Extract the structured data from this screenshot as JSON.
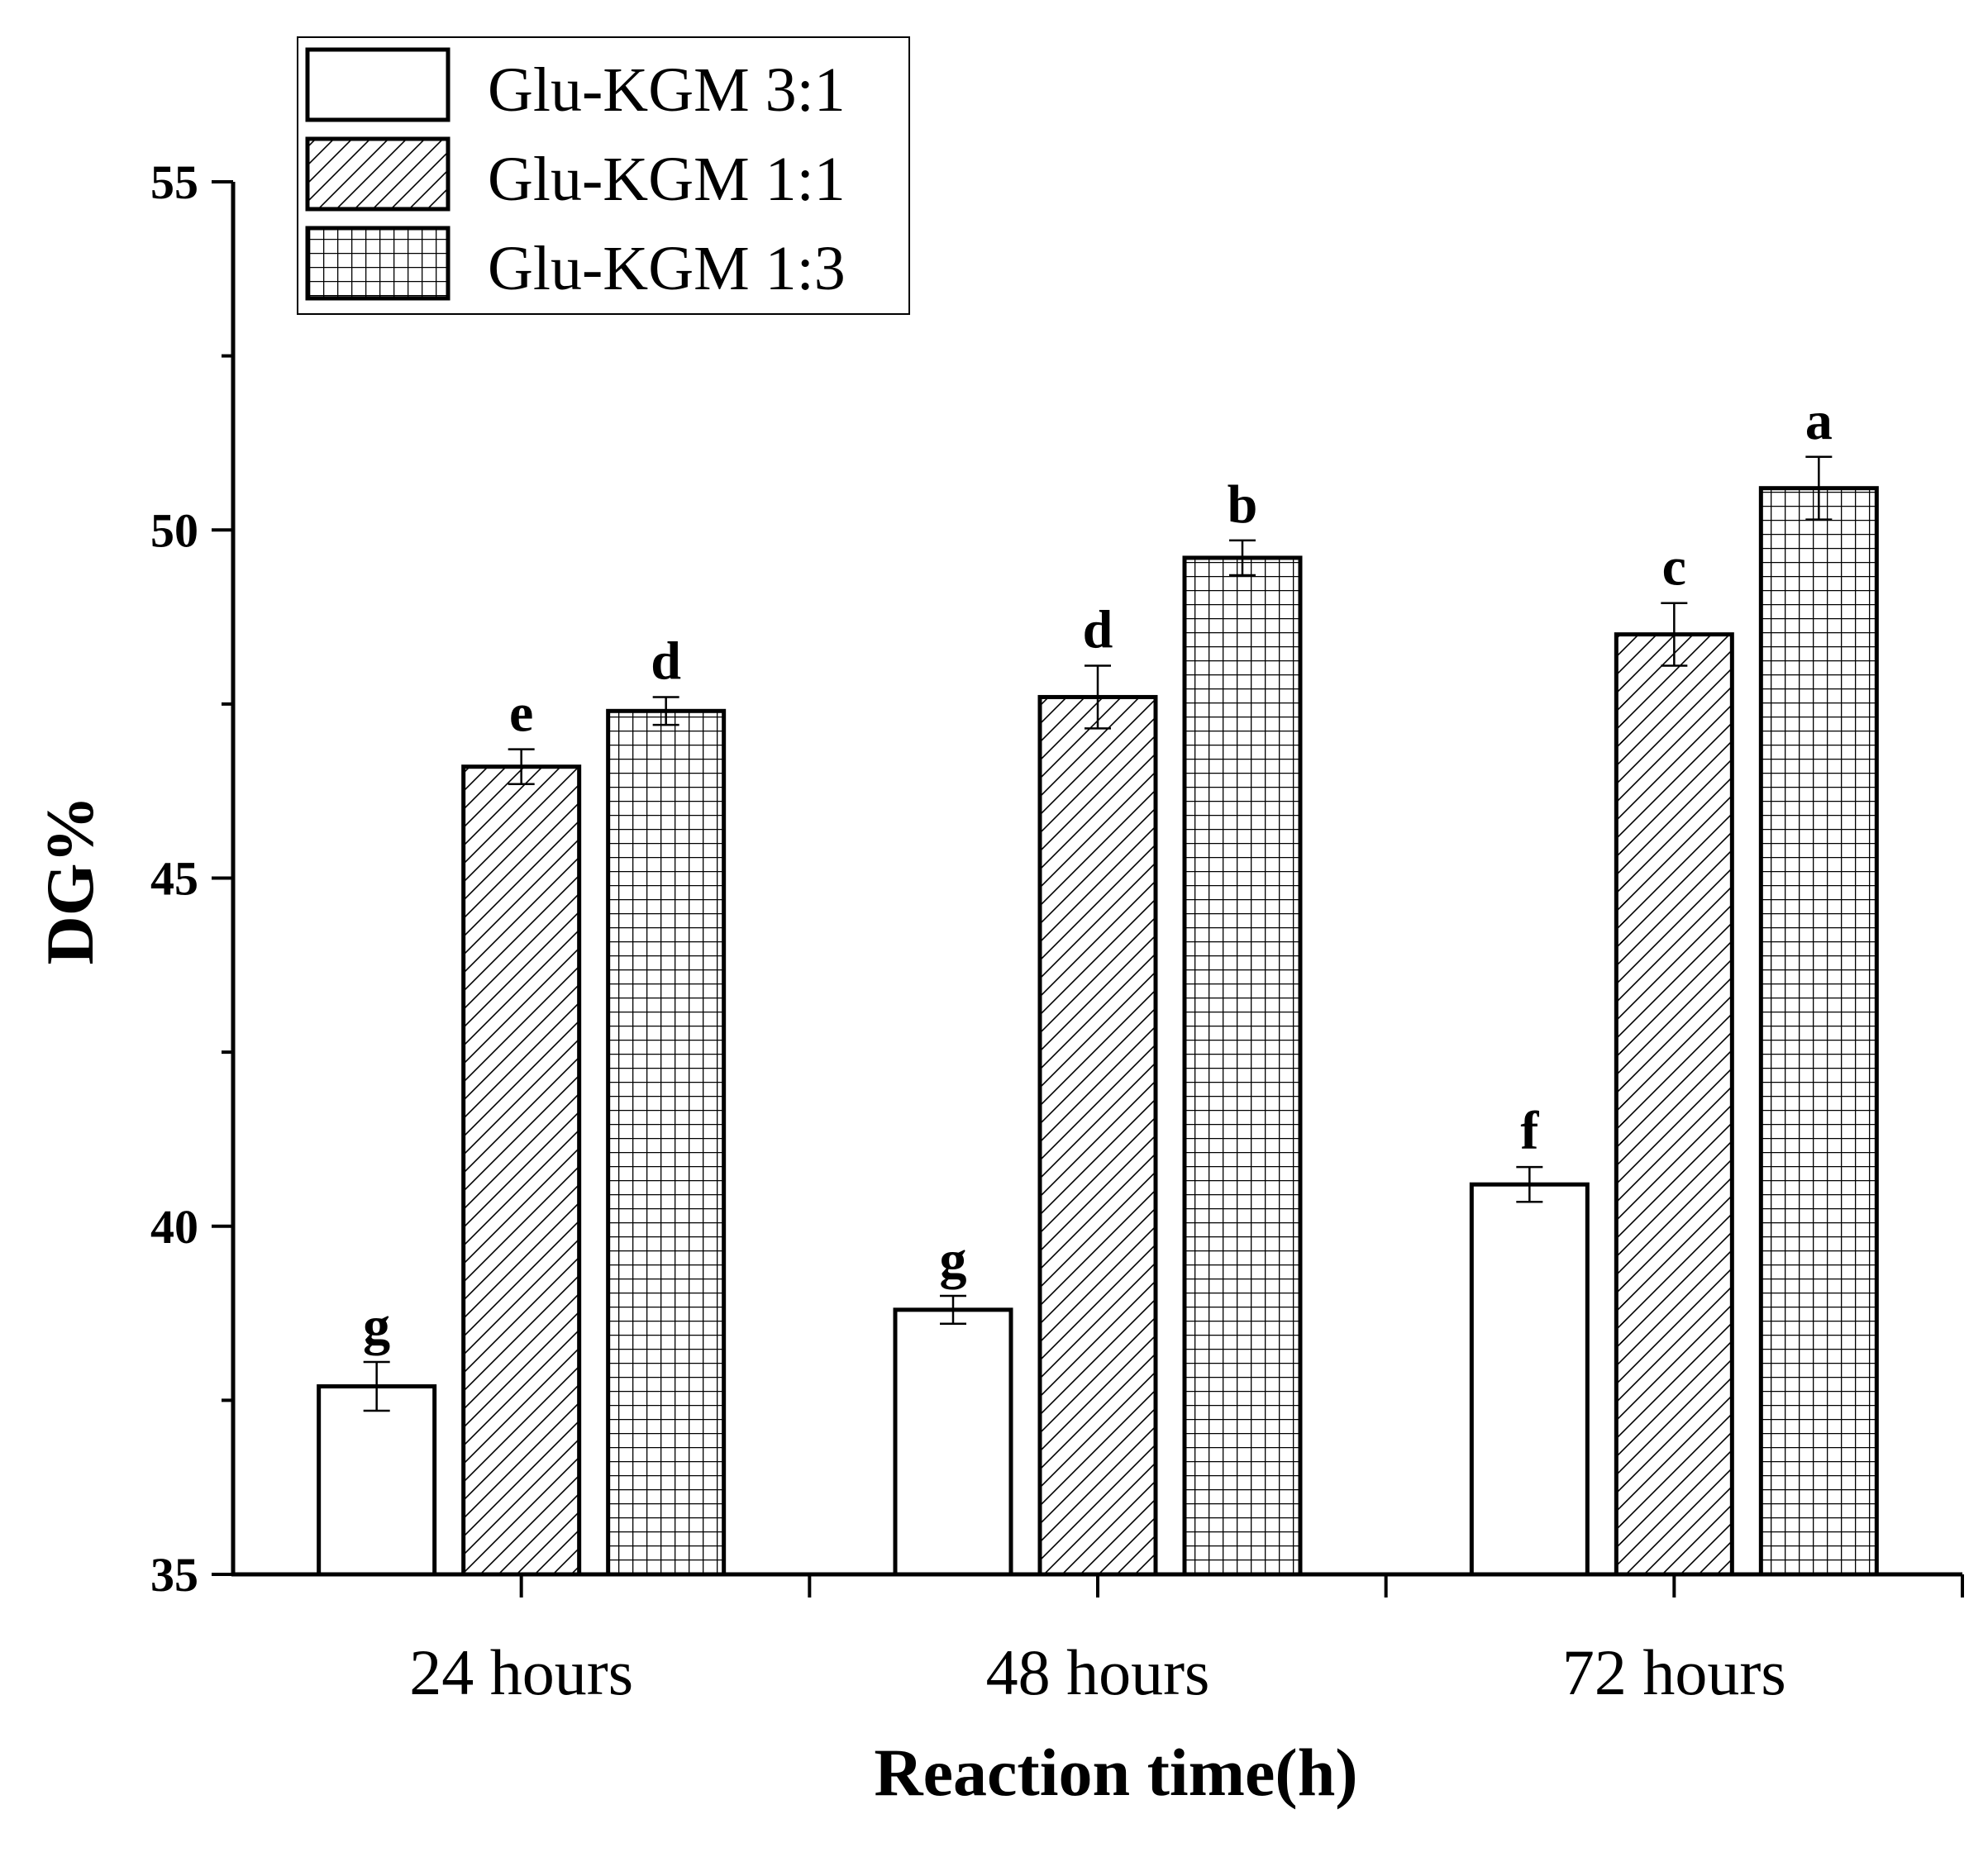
{
  "chart_data": {
    "type": "bar",
    "title": "",
    "xlabel": "Reaction time(h)",
    "ylabel": "DG%",
    "ylim": [
      35,
      55
    ],
    "yticks": [
      35,
      40,
      45,
      50,
      55
    ],
    "grid": false,
    "legend_position": "top-left",
    "categories": [
      "24 hours",
      "48 hours",
      "72 hours"
    ],
    "series": [
      {
        "name": "Glu-KGM 3:1",
        "pattern": "none",
        "values": [
          37.7,
          38.8,
          40.6
        ],
        "errors": [
          0.35,
          0.2,
          0.25
        ],
        "letters": [
          "g",
          "g",
          "f"
        ]
      },
      {
        "name": "Glu-KGM 1:1",
        "pattern": "diagonal",
        "values": [
          46.6,
          47.6,
          48.5
        ],
        "errors": [
          0.25,
          0.45,
          0.45
        ],
        "letters": [
          "e",
          "d",
          "c"
        ]
      },
      {
        "name": "Glu-KGM 1:3",
        "pattern": "grid",
        "values": [
          47.4,
          49.6,
          50.6
        ],
        "errors": [
          0.2,
          0.25,
          0.45
        ],
        "letters": [
          "d",
          "b",
          "a"
        ]
      }
    ]
  },
  "colors": {
    "axis": "#000000",
    "bar_fill": "#ffffff",
    "bar_stroke": "#000000"
  }
}
